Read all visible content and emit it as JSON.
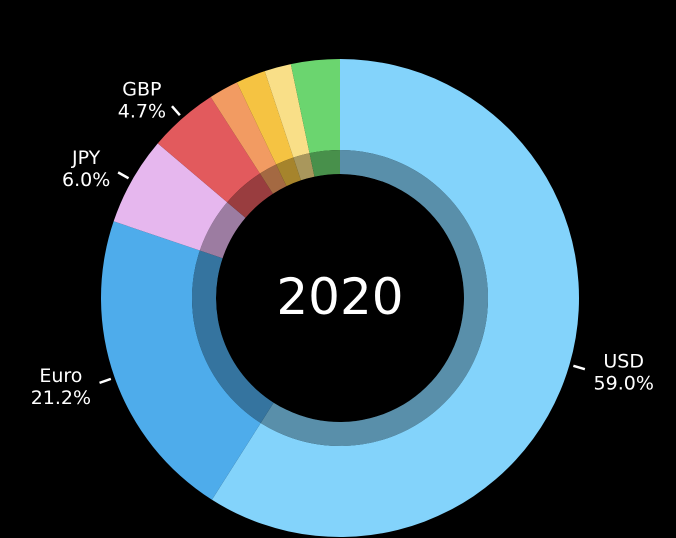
{
  "chart_data": {
    "type": "pie",
    "donut": true,
    "center_text": "2020",
    "slices": [
      {
        "label": "USD",
        "value": 59.0,
        "display": "59.0%",
        "color": "#83d3fb"
      },
      {
        "label": "Euro",
        "value": 21.2,
        "display": "21.2%",
        "color": "#4eaceb"
      },
      {
        "label": "JPY",
        "value": 6.0,
        "display": "6.0%",
        "color": "#e6b7ee"
      },
      {
        "label": "GBP",
        "value": 4.7,
        "display": "4.7%",
        "color": "#e25a5d"
      },
      {
        "label": "",
        "value": 2.0,
        "display": "",
        "color": "#f29b62"
      },
      {
        "label": "",
        "value": 2.0,
        "display": "",
        "color": "#f5c342"
      },
      {
        "label": "",
        "value": 1.8,
        "display": "",
        "color": "#f9df88"
      },
      {
        "label": "",
        "value": 3.3,
        "display": "",
        "color": "#6bd56f"
      }
    ],
    "start_angle": "12 o'clock",
    "direction": "clockwise",
    "background": "#000000",
    "label_color": "#ffffff"
  }
}
